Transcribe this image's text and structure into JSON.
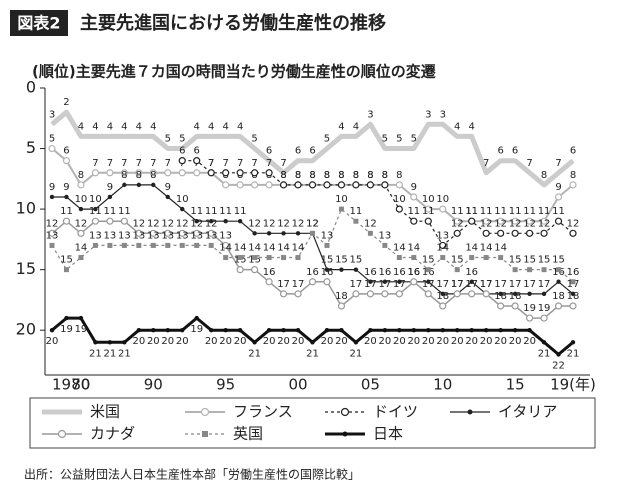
{
  "badge": "図表2",
  "chart_data": {
    "type": "line",
    "title": "主要先進国における労働生産性の推移",
    "subtitle": "(順位)主要先進７カ国の時間当たり労働生産性の順位の変遷",
    "source": "出所：公益財団法人日本生産性本部「労働生産性の国際比較」",
    "categories": [
      "1970",
      null,
      "80",
      null,
      null,
      null,
      null,
      "90",
      null,
      null,
      null,
      null,
      "95",
      null,
      null,
      null,
      null,
      "00",
      null,
      null,
      null,
      null,
      "05",
      null,
      null,
      null,
      null,
      "10",
      null,
      null,
      null,
      null,
      "15",
      null,
      null,
      null,
      "19(年)"
    ],
    "ylim": [
      23.7,
      0
    ],
    "yticks": [
      0,
      5,
      10,
      15,
      20
    ],
    "series": [
      {
        "name": "米国",
        "color": "#cccccc",
        "width": 5,
        "dash": "none",
        "marker": "none",
        "values": [
          3,
          2,
          4,
          4,
          4,
          4,
          4,
          4,
          5,
          5,
          4,
          4,
          4,
          4,
          5,
          6,
          7,
          6,
          6,
          5,
          4,
          4,
          3,
          5,
          5,
          5,
          3,
          3,
          4,
          4,
          7,
          6,
          6,
          7,
          8,
          7,
          6
        ]
      },
      {
        "name": "フランス",
        "color": "#b3b3b3",
        "width": 2,
        "dash": "none",
        "marker": "circle",
        "values": [
          5,
          6,
          8,
          7,
          7,
          7,
          7,
          7,
          7,
          7,
          7,
          7,
          8,
          8,
          8,
          8,
          8,
          8,
          8,
          8,
          8,
          8,
          8,
          8,
          8,
          9,
          10,
          10,
          11,
          11,
          11,
          11,
          11,
          11,
          11,
          9,
          8
        ]
      },
      {
        "name": "ドイツ",
        "color": "#222222",
        "width": 1.2,
        "dash": "3,3",
        "marker": "circle",
        "values": [
          null,
          null,
          null,
          null,
          null,
          null,
          null,
          null,
          null,
          6,
          6,
          7,
          7,
          7,
          7,
          7,
          8,
          8,
          8,
          8,
          8,
          8,
          8,
          8,
          10,
          11,
          11,
          13,
          12,
          11,
          12,
          12,
          12,
          12,
          12,
          11,
          12
        ]
      },
      {
        "name": "イタリア",
        "color": "#222222",
        "width": 1.2,
        "dash": "none",
        "marker": "dot",
        "values": [
          9,
          9,
          10,
          10,
          9,
          8,
          8,
          8,
          9,
          10,
          11,
          11,
          11,
          11,
          12,
          12,
          12,
          12,
          12,
          15,
          15,
          15,
          16,
          16,
          16,
          16,
          16,
          17,
          17,
          16,
          17,
          17,
          17,
          17,
          17,
          16,
          17
        ]
      },
      {
        "name": "カナダ",
        "color": "#999999",
        "width": 1.5,
        "dash": "none",
        "marker": "circle",
        "values": [
          12,
          11,
          12,
          11,
          11,
          11,
          12,
          12,
          12,
          12,
          12,
          12,
          13,
          15,
          15,
          16,
          17,
          17,
          16,
          16,
          18,
          17,
          17,
          17,
          17,
          16,
          17,
          18,
          17,
          17,
          17,
          18,
          18,
          19,
          19,
          18,
          18
        ]
      },
      {
        "name": "英国",
        "color": "#888888",
        "width": 1.2,
        "dash": "3,3",
        "marker": "square",
        "values": [
          13,
          15,
          14,
          13,
          13,
          13,
          13,
          13,
          13,
          13,
          13,
          13,
          14,
          14,
          14,
          14,
          14,
          14,
          12,
          13,
          10,
          11,
          12,
          13,
          14,
          14,
          15,
          14,
          15,
          14,
          14,
          14,
          15,
          15,
          15,
          15,
          16
        ]
      },
      {
        "name": "日本",
        "color": "#111111",
        "width": 3,
        "dash": "none",
        "marker": "dot",
        "values": [
          20,
          19,
          19,
          21,
          21,
          21,
          20,
          20,
          20,
          20,
          19,
          20,
          20,
          20,
          21,
          20,
          20,
          20,
          21,
          20,
          20,
          21,
          20,
          20,
          20,
          20,
          20,
          20,
          20,
          20,
          20,
          20,
          20,
          20,
          21,
          22,
          21
        ]
      }
    ]
  }
}
